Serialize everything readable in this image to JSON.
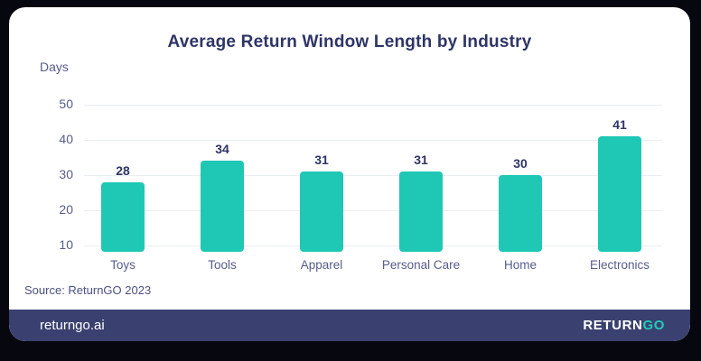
{
  "card": {
    "title": "Average Return Window Length by Industry",
    "source": "Source: ReturnGO 2023"
  },
  "chart_data": {
    "type": "bar",
    "title": "Average Return Window Length by Industry",
    "ylabel": "Days",
    "categories": [
      "Toys",
      "Tools",
      "Apparel",
      "Personal Care",
      "Home",
      "Electronics"
    ],
    "values": [
      28,
      34,
      31,
      31,
      30,
      41
    ],
    "yticks": [
      10,
      20,
      30,
      40,
      50
    ],
    "ylim": [
      8.2,
      52
    ],
    "grid": true,
    "legend": false,
    "bar_color": "#1ec8b5",
    "value_label_color": "#2e3566",
    "axis_label_color": "#575c8b"
  },
  "footer": {
    "site": "returngo.ai",
    "logo_return": "RETURN",
    "logo_go": "GO"
  },
  "colors": {
    "background": "#07070f",
    "card": "#ffffff",
    "title": "#2e3566",
    "footer": "#3a4170",
    "gridline": "#ebedf4",
    "accent_teal": "#1ec8b5"
  }
}
